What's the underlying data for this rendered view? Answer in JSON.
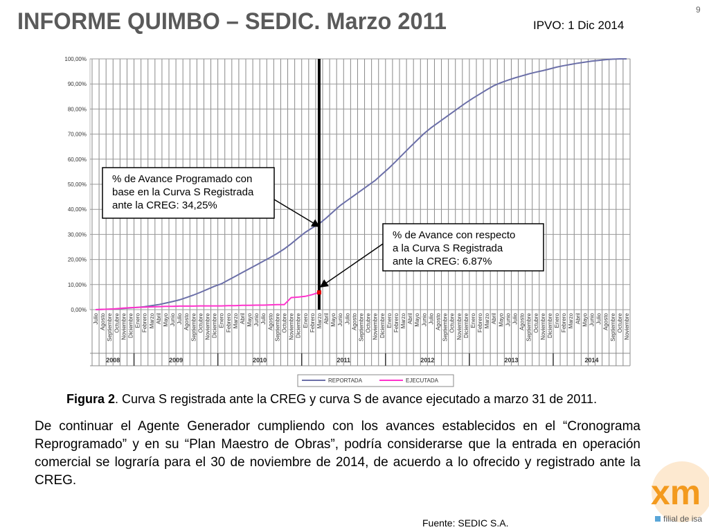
{
  "slide": {
    "title": "INFORME QUIMBO – SEDIC. Marzo 2011",
    "date_note": "IPVO: 1 Dic 2014",
    "page_number": "9",
    "paragraph": "De continuar el Agente Generador cumpliendo con los avances establecidos en el “Cronograma Reprogramado” y en su “Plan Maestro de Obras”, podría considerarse que la entrada en operación comercial se lograría para el 30 de noviembre de 2014, de acuerdo a lo ofrecido y registrado ante la CREG.",
    "source": "Fuente: SEDIC S.A.",
    "logo": "xm",
    "logo_tagline": "filial de isa"
  },
  "chart_data": {
    "type": "line",
    "caption_label": "Figura 2",
    "caption": ". Curva S registrada ante la CREG y curva S de avance ejecutado a marzo 31 de 2011.",
    "categories": [
      "Julio",
      "Agosto",
      "Septiembre",
      "Octubre",
      "Noviembre",
      "Diciembre",
      "Enero",
      "Febrero",
      "Marzo",
      "Abril",
      "Mayo",
      "Junio",
      "Julio",
      "Agosto",
      "Septiembre",
      "Octubre",
      "Noviembre",
      "Diciembre",
      "Enero",
      "Febrero",
      "Marzo",
      "Abril",
      "Mayo",
      "Junio",
      "Julio",
      "Agosto",
      "Septiembre",
      "Octubre",
      "Noviembre",
      "Diciembre",
      "Enero",
      "Febrero",
      "Marzo",
      "Abril",
      "Mayo",
      "Junio",
      "Julio",
      "Agosto",
      "Septiembre",
      "Octubre",
      "Noviembre",
      "Diciembre",
      "Enero",
      "Febrero",
      "Marzo",
      "Abril",
      "Mayo",
      "Junio",
      "Julio",
      "Agosto",
      "Septiembre",
      "Octubre",
      "Noviembre",
      "Diciembre",
      "Enero",
      "Febrero",
      "Marzo",
      "Abril",
      "Mayo",
      "Junio",
      "Julio",
      "Agosto",
      "Septiembre",
      "Octubre",
      "Noviembre",
      "Diciembre",
      "Enero",
      "Febrero",
      "Marzo",
      "Abril",
      "Mayo",
      "Junio",
      "Julio",
      "Agosto",
      "Septiembre",
      "Octubre",
      "Noviembre"
    ],
    "year_labels": [
      "2008",
      "2009",
      "2010",
      "2011",
      "2012",
      "2013",
      "2014"
    ],
    "series": [
      {
        "name": "REPORTADA",
        "color": "#6b6fa8",
        "values": [
          0,
          0.1,
          0.2,
          0.3,
          0.5,
          0.7,
          0.9,
          1.2,
          1.6,
          2.0,
          2.6,
          3.2,
          3.9,
          4.8,
          5.8,
          6.9,
          8.1,
          9.3,
          10.3,
          11.8,
          13.3,
          14.8,
          16.3,
          17.8,
          19.3,
          20.8,
          22.4,
          24.2,
          26.3,
          28.6,
          30.8,
          32.6,
          34.25,
          36.5,
          39.0,
          41.5,
          43.5,
          45.5,
          47.5,
          49.5,
          51.5,
          54.0,
          56.5,
          59.2,
          62.0,
          64.8,
          67.5,
          70.2,
          72.5,
          74.5,
          76.5,
          78.5,
          80.5,
          82.5,
          84.3,
          86.0,
          87.7,
          89.3,
          90.5,
          91.5,
          92.4,
          93.2,
          94.0,
          94.7,
          95.3,
          96.0,
          96.7,
          97.3,
          97.8,
          98.3,
          98.7,
          99.1,
          99.4,
          99.7,
          99.9,
          100,
          100
        ]
      },
      {
        "name": "EJECUTADA",
        "color": "#ff33cc",
        "values": [
          0,
          0.1,
          0.2,
          0.4,
          0.6,
          0.8,
          0.9,
          1.0,
          1.1,
          1.2,
          1.3,
          1.3,
          1.4,
          1.4,
          1.4,
          1.5,
          1.5,
          1.5,
          1.5,
          1.6,
          1.6,
          1.7,
          1.7,
          1.8,
          1.8,
          1.9,
          2.0,
          2.0,
          4.8,
          5.0,
          5.3,
          6.0,
          6.87,
          null,
          null,
          null,
          null,
          null,
          null,
          null,
          null,
          null,
          null,
          null,
          null,
          null,
          null,
          null,
          null,
          null,
          null,
          null,
          null,
          null,
          null,
          null,
          null,
          null,
          null,
          null,
          null,
          null,
          null,
          null,
          null,
          null,
          null,
          null,
          null,
          null,
          null,
          null,
          null,
          null,
          null,
          null,
          null
        ]
      }
    ],
    "annotations": [
      [
        "% de Avance Programado con",
        "base en la Curva S Registrada",
        "ante la CREG: 34,25%"
      ],
      [
        "% de Avance con respecto",
        "a la Curva S Registrada",
        "ante la CREG: 6.87%"
      ]
    ],
    "ylim": [
      0,
      100
    ],
    "yticks": [
      {
        "value": 0,
        "label": "0,00%"
      },
      {
        "value": 10,
        "label": "10,00%"
      },
      {
        "value": 20,
        "label": "20,00%"
      },
      {
        "value": 30,
        "label": "30,00%"
      },
      {
        "value": 40,
        "label": "40,00%"
      },
      {
        "value": 50,
        "label": "50,00%"
      },
      {
        "value": 60,
        "label": "60,00%"
      },
      {
        "value": 70,
        "label": "70,00%"
      },
      {
        "value": 80,
        "label": "80,00%"
      },
      {
        "value": 90,
        "label": "90,00%"
      },
      {
        "value": 100,
        "label": "100,00%"
      }
    ],
    "grid": true
  }
}
